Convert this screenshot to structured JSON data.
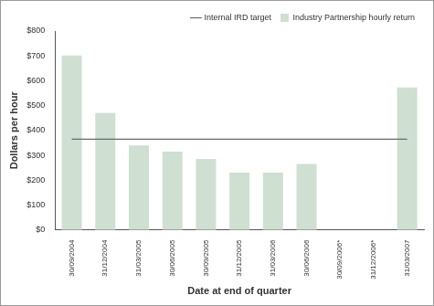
{
  "chart_data": {
    "type": "bar",
    "x_label": "Date at end of quarter",
    "y_label": "Dollars per hour",
    "categories": [
      "30/09/2004",
      "31/12/2004",
      "31/03/2005",
      "30/06/2005",
      "30/09/2005",
      "31/12/2005",
      "31/03/2006",
      "30/06/2006",
      "30/09/2006*",
      "31/12/2006*",
      "31/03/2007"
    ],
    "series": [
      {
        "name": "Industry Partnership hourly return",
        "type": "bar",
        "color": "#cfdfd2",
        "values": [
          702,
          470,
          340,
          315,
          285,
          230,
          230,
          265,
          null,
          null,
          573
        ]
      },
      {
        "name": "Internal IRD target",
        "type": "line",
        "color": "#6a6a6a",
        "line_style": "solid",
        "values": [
          365,
          365,
          365,
          365,
          365,
          365,
          365,
          365,
          365,
          365,
          365
        ]
      }
    ],
    "ylim": [
      0,
      800
    ],
    "yticks": [
      {
        "value": 0,
        "label": "$0"
      },
      {
        "value": 100,
        "label": "$100"
      },
      {
        "value": 200,
        "label": "$200"
      },
      {
        "value": 300,
        "label": "$300"
      },
      {
        "value": 400,
        "label": "$400"
      },
      {
        "value": 500,
        "label": "$500"
      },
      {
        "value": 600,
        "label": "$600"
      },
      {
        "value": 700,
        "label": "$700"
      },
      {
        "value": 800,
        "label": "$800"
      }
    ],
    "grid": false,
    "legend": "top-right"
  }
}
